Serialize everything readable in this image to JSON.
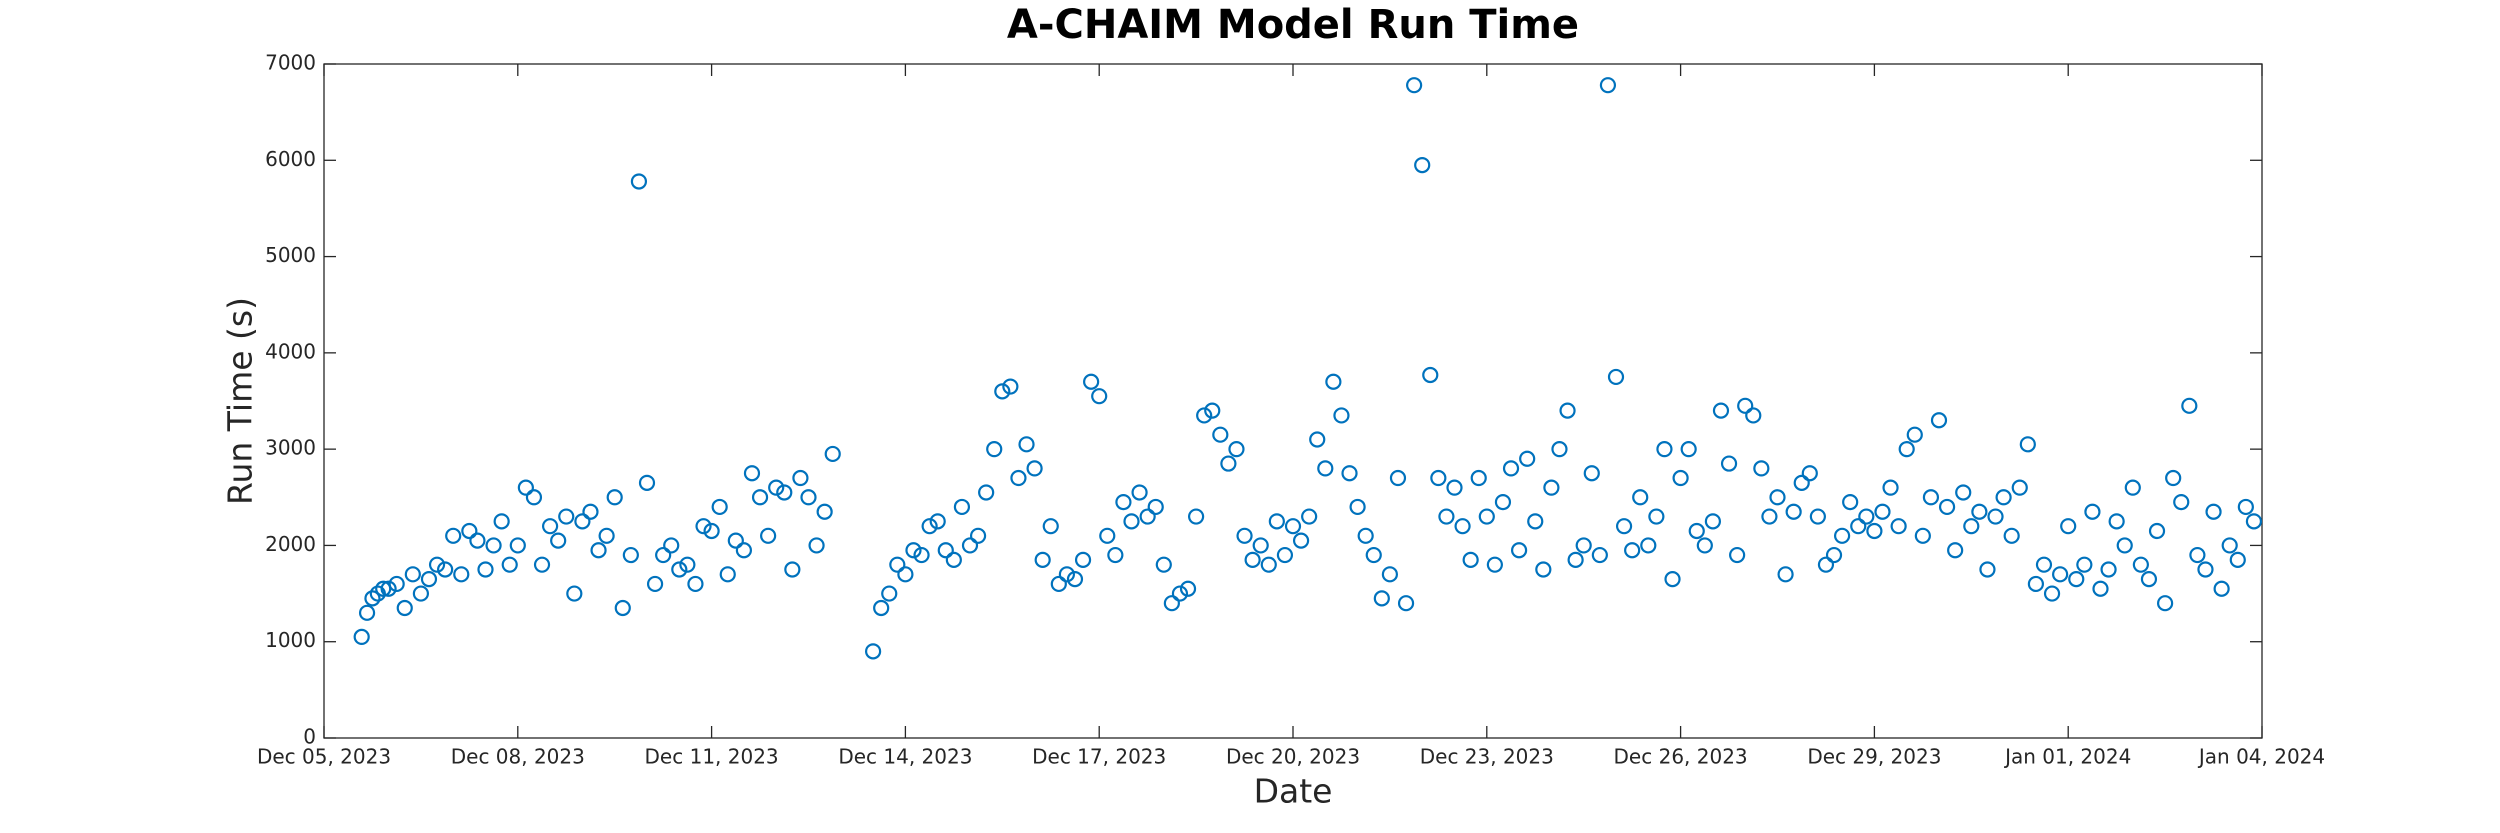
{
  "chart_data": {
    "type": "scatter",
    "title": "A-CHAIM Model Run Time",
    "xlabel": "Date",
    "ylabel": "Run Time (s)",
    "color": "#0072BD",
    "marker": "open-circle",
    "grid": false,
    "xlim": [
      "2023-12-05",
      "2024-01-04"
    ],
    "xticks": [
      {
        "value": "2023-12-05",
        "label": "Dec 05, 2023"
      },
      {
        "value": "2023-12-08",
        "label": "Dec 08, 2023"
      },
      {
        "value": "2023-12-11",
        "label": "Dec 11, 2023"
      },
      {
        "value": "2023-12-14",
        "label": "Dec 14, 2023"
      },
      {
        "value": "2023-12-17",
        "label": "Dec 17, 2023"
      },
      {
        "value": "2023-12-20",
        "label": "Dec 20, 2023"
      },
      {
        "value": "2023-12-23",
        "label": "Dec 23, 2023"
      },
      {
        "value": "2023-12-26",
        "label": "Dec 26, 2023"
      },
      {
        "value": "2023-12-29",
        "label": "Dec 29, 2023"
      },
      {
        "value": "2024-01-01",
        "label": "Jan 01, 2024"
      },
      {
        "value": "2024-01-04",
        "label": "Jan 04, 2024"
      }
    ],
    "ylim": [
      0,
      7000
    ],
    "yticks": [
      0,
      1000,
      2000,
      3000,
      4000,
      5000,
      6000,
      7000
    ],
    "x": [
      "2023-12-05T14:00",
      "2023-12-05T16:00",
      "2023-12-05T18:00",
      "2023-12-05T20:00",
      "2023-12-05T22:00",
      "2023-12-06T00:00",
      "2023-12-06T03:00",
      "2023-12-06T06:00",
      "2023-12-06T09:00",
      "2023-12-06T12:00",
      "2023-12-06T15:00",
      "2023-12-06T18:00",
      "2023-12-06T21:00",
      "2023-12-07T00:00",
      "2023-12-07T03:00",
      "2023-12-07T06:00",
      "2023-12-07T09:00",
      "2023-12-07T12:00",
      "2023-12-07T15:00",
      "2023-12-07T18:00",
      "2023-12-07T21:00",
      "2023-12-08T00:00",
      "2023-12-08T03:00",
      "2023-12-08T06:00",
      "2023-12-08T09:00",
      "2023-12-08T12:00",
      "2023-12-08T15:00",
      "2023-12-08T18:00",
      "2023-12-08T21:00",
      "2023-12-09T00:00",
      "2023-12-09T03:00",
      "2023-12-09T06:00",
      "2023-12-09T09:00",
      "2023-12-09T12:00",
      "2023-12-09T15:00",
      "2023-12-09T18:00",
      "2023-12-09T21:00",
      "2023-12-10T00:00",
      "2023-12-10T03:00",
      "2023-12-10T06:00",
      "2023-12-10T09:00",
      "2023-12-10T12:00",
      "2023-12-10T15:00",
      "2023-12-10T18:00",
      "2023-12-10T21:00",
      "2023-12-11T00:00",
      "2023-12-11T03:00",
      "2023-12-11T06:00",
      "2023-12-11T09:00",
      "2023-12-11T12:00",
      "2023-12-11T15:00",
      "2023-12-11T18:00",
      "2023-12-11T21:00",
      "2023-12-12T00:00",
      "2023-12-12T03:00",
      "2023-12-12T06:00",
      "2023-12-12T09:00",
      "2023-12-12T12:00",
      "2023-12-12T15:00",
      "2023-12-12T18:00",
      "2023-12-12T21:00",
      "2023-12-13T12:00",
      "2023-12-13T15:00",
      "2023-12-13T18:00",
      "2023-12-13T21:00",
      "2023-12-14T00:00",
      "2023-12-14T03:00",
      "2023-12-14T06:00",
      "2023-12-14T09:00",
      "2023-12-14T12:00",
      "2023-12-14T15:00",
      "2023-12-14T18:00",
      "2023-12-14T21:00",
      "2023-12-15T00:00",
      "2023-12-15T03:00",
      "2023-12-15T06:00",
      "2023-12-15T09:00",
      "2023-12-15T12:00",
      "2023-12-15T15:00",
      "2023-12-15T18:00",
      "2023-12-15T21:00",
      "2023-12-16T00:00",
      "2023-12-16T03:00",
      "2023-12-16T06:00",
      "2023-12-16T09:00",
      "2023-12-16T12:00",
      "2023-12-16T15:00",
      "2023-12-16T18:00",
      "2023-12-16T21:00",
      "2023-12-17T00:00",
      "2023-12-17T03:00",
      "2023-12-17T06:00",
      "2023-12-17T09:00",
      "2023-12-17T12:00",
      "2023-12-17T15:00",
      "2023-12-17T18:00",
      "2023-12-17T21:00",
      "2023-12-18T00:00",
      "2023-12-18T03:00",
      "2023-12-18T06:00",
      "2023-12-18T09:00",
      "2023-12-18T12:00",
      "2023-12-18T15:00",
      "2023-12-18T18:00",
      "2023-12-18T21:00",
      "2023-12-19T00:00",
      "2023-12-19T03:00",
      "2023-12-19T06:00",
      "2023-12-19T09:00",
      "2023-12-19T12:00",
      "2023-12-19T15:00",
      "2023-12-19T18:00",
      "2023-12-19T21:00",
      "2023-12-20T00:00",
      "2023-12-20T03:00",
      "2023-12-20T06:00",
      "2023-12-20T09:00",
      "2023-12-20T12:00",
      "2023-12-20T15:00",
      "2023-12-20T18:00",
      "2023-12-20T21:00",
      "2023-12-21T00:00",
      "2023-12-21T03:00",
      "2023-12-21T06:00",
      "2023-12-21T09:00",
      "2023-12-21T12:00",
      "2023-12-21T15:00",
      "2023-12-21T18:00",
      "2023-12-21T21:00",
      "2023-12-22T00:00",
      "2023-12-22T03:00",
      "2023-12-22T06:00",
      "2023-12-22T09:00",
      "2023-12-22T12:00",
      "2023-12-22T15:00",
      "2023-12-22T18:00",
      "2023-12-22T21:00",
      "2023-12-23T00:00",
      "2023-12-23T03:00",
      "2023-12-23T06:00",
      "2023-12-23T09:00",
      "2023-12-23T12:00",
      "2023-12-23T15:00",
      "2023-12-23T18:00",
      "2023-12-23T21:00",
      "2023-12-24T00:00",
      "2023-12-24T03:00",
      "2023-12-24T06:00",
      "2023-12-24T09:00",
      "2023-12-24T12:00",
      "2023-12-24T15:00",
      "2023-12-24T18:00",
      "2023-12-24T21:00",
      "2023-12-25T00:00",
      "2023-12-25T03:00",
      "2023-12-25T06:00",
      "2023-12-25T09:00",
      "2023-12-25T12:00",
      "2023-12-25T15:00",
      "2023-12-25T18:00",
      "2023-12-25T21:00",
      "2023-12-26T00:00",
      "2023-12-26T03:00",
      "2023-12-26T06:00",
      "2023-12-26T09:00",
      "2023-12-26T12:00",
      "2023-12-26T15:00",
      "2023-12-26T18:00",
      "2023-12-26T21:00",
      "2023-12-27T00:00",
      "2023-12-27T03:00",
      "2023-12-27T06:00",
      "2023-12-27T09:00",
      "2023-12-27T12:00",
      "2023-12-27T15:00",
      "2023-12-27T18:00",
      "2023-12-27T21:00",
      "2023-12-28T00:00",
      "2023-12-28T03:00",
      "2023-12-28T06:00",
      "2023-12-28T09:00",
      "2023-12-28T12:00",
      "2023-12-28T15:00",
      "2023-12-28T18:00",
      "2023-12-28T21:00",
      "2023-12-29T00:00",
      "2023-12-29T03:00",
      "2023-12-29T06:00",
      "2023-12-29T09:00",
      "2023-12-29T12:00",
      "2023-12-29T15:00",
      "2023-12-29T18:00",
      "2023-12-29T21:00",
      "2023-12-30T00:00",
      "2023-12-30T03:00",
      "2023-12-30T06:00",
      "2023-12-30T09:00",
      "2023-12-30T12:00",
      "2023-12-30T15:00",
      "2023-12-30T18:00",
      "2023-12-30T21:00",
      "2023-12-31T00:00",
      "2023-12-31T03:00",
      "2023-12-31T06:00",
      "2023-12-31T09:00",
      "2023-12-31T12:00",
      "2023-12-31T15:00",
      "2023-12-31T18:00",
      "2023-12-31T21:00",
      "2024-01-01T00:00",
      "2024-01-01T03:00",
      "2024-01-01T06:00",
      "2024-01-01T09:00",
      "2024-01-01T12:00",
      "2024-01-01T15:00",
      "2024-01-01T18:00",
      "2024-01-01T21:00",
      "2024-01-02T00:00",
      "2024-01-02T03:00",
      "2024-01-02T06:00",
      "2024-01-02T09:00",
      "2024-01-02T12:00",
      "2024-01-02T15:00",
      "2024-01-02T18:00",
      "2024-01-02T21:00",
      "2024-01-03T00:00",
      "2024-01-03T03:00",
      "2024-01-03T06:00",
      "2024-01-03T09:00",
      "2024-01-03T12:00",
      "2024-01-03T15:00",
      "2024-01-03T18:00",
      "2024-01-03T21:00"
    ],
    "values": [
      1050,
      1300,
      1450,
      1500,
      1550,
      1550,
      1600,
      1350,
      1700,
      1500,
      1650,
      1800,
      1750,
      2100,
      1700,
      2150,
      2050,
      1750,
      2000,
      2250,
      1800,
      2000,
      2600,
      2500,
      1800,
      2200,
      2050,
      2300,
      1500,
      2250,
      2350,
      1950,
      2100,
      2500,
      1350,
      1900,
      5780,
      2650,
      1600,
      1900,
      2000,
      1750,
      1800,
      1600,
      2200,
      2150,
      2400,
      1700,
      2050,
      1950,
      2750,
      2500,
      2100,
      2600,
      2550,
      1750,
      2700,
      2500,
      2000,
      2350,
      2950,
      900,
      1350,
      1500,
      1800,
      1700,
      1950,
      1900,
      2200,
      2250,
      1950,
      1850,
      2400,
      2000,
      2100,
      2550,
      3000,
      3600,
      3650,
      2700,
      3050,
      2800,
      1850,
      2200,
      1600,
      1700,
      1650,
      1850,
      3700,
      3550,
      2100,
      1900,
      2450,
      2250,
      2550,
      2300,
      2400,
      1800,
      1400,
      1500,
      1550,
      2300,
      3350,
      3400,
      3150,
      2850,
      3000,
      2100,
      1850,
      2000,
      1800,
      2250,
      1900,
      2200,
      2050,
      2300,
      3100,
      2800,
      3700,
      3350,
      2750,
      2400,
      2100,
      1900,
      1450,
      1700,
      2700,
      1400,
      6780,
      5950,
      3770,
      2700,
      2300,
      2600,
      2200,
      1850,
      2700,
      2300,
      1800,
      2450,
      2800,
      1950,
      2900,
      2250,
      1750,
      2600,
      3000,
      3400,
      1850,
      2000,
      2750,
      1900,
      6780,
      3750,
      2200,
      1950,
      2500,
      2000,
      2300,
      3000,
      1650,
      2700,
      3000,
      2150,
      2000,
      2250,
      3400,
      2850,
      1900,
      3450,
      3350,
      2800,
      2300,
      2500,
      1700,
      2350,
      2650,
      2750,
      2300,
      1800,
      1900,
      2100,
      2450,
      2200,
      2300,
      2150,
      2350,
      2600,
      2200,
      3000,
      3150,
      2100,
      2500,
      3300,
      2400,
      1950,
      2550,
      2200,
      2350,
      1750,
      2300,
      2500,
      2100,
      2600,
      3050,
      1600,
      1800,
      1500,
      1700,
      2200,
      1650,
      1800,
      2350,
      1550,
      1750,
      2250,
      2000,
      2600,
      1800,
      1650,
      2150,
      1400,
      2700,
      2450,
      3450,
      1900,
      1750,
      2350,
      1550,
      2000,
      1850,
      2400,
      2250
    ]
  }
}
